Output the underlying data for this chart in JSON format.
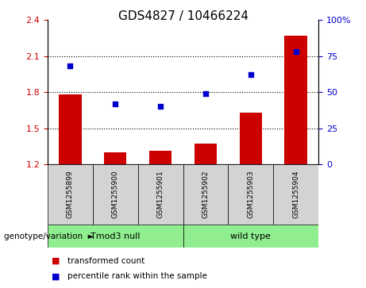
{
  "title": "GDS4827 / 10466224",
  "samples": [
    "GSM1255899",
    "GSM1255900",
    "GSM1255901",
    "GSM1255902",
    "GSM1255903",
    "GSM1255904"
  ],
  "bar_values": [
    1.78,
    1.3,
    1.31,
    1.37,
    1.63,
    2.27
  ],
  "dot_values_right": [
    68,
    42,
    40,
    49,
    62,
    78
  ],
  "ylim_left": [
    1.2,
    2.4
  ],
  "ylim_right": [
    0,
    100
  ],
  "yticks_left": [
    1.2,
    1.5,
    1.8,
    2.1,
    2.4
  ],
  "yticks_right": [
    0,
    25,
    50,
    75,
    100
  ],
  "ytick_labels_left": [
    "1.2",
    "1.5",
    "1.8",
    "2.1",
    "2.4"
  ],
  "ytick_labels_right": [
    "0",
    "25",
    "50",
    "75",
    "100%"
  ],
  "bar_color": "#cc0000",
  "dot_color": "#0000cc",
  "hline_values": [
    1.5,
    1.8,
    2.1
  ],
  "group1_label": "Tmod3 null",
  "group2_label": "wild type",
  "group_color": "#90ee90",
  "genotype_label": "genotype/variation",
  "legend_bar_label": "transformed count",
  "legend_dot_label": "percentile rank within the sample",
  "bar_bottom": 1.2,
  "cell_bg": "#d3d3d3",
  "title_fontsize": 11,
  "tick_fontsize": 8
}
